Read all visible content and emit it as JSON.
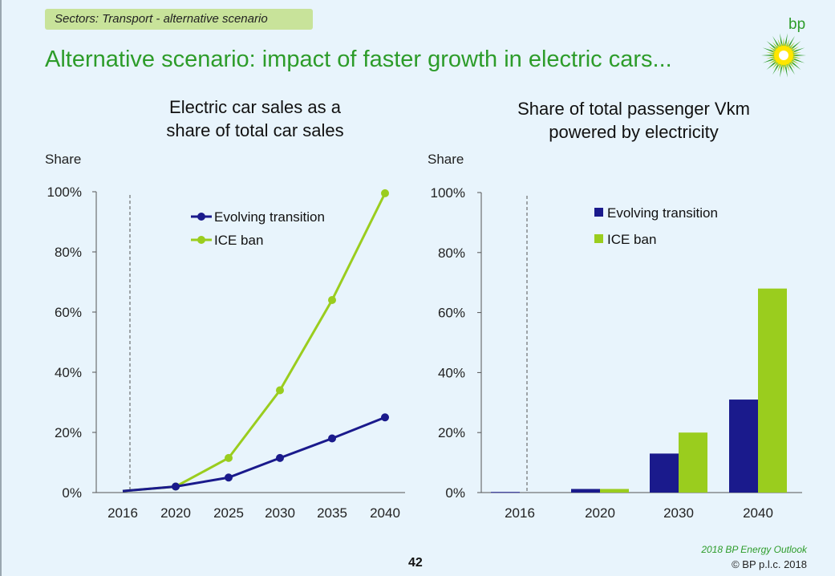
{
  "tag": "Sectors: Transport - alternative scenario",
  "headline": "Alternative scenario: impact of faster growth in electric cars...",
  "logo_text": "bp",
  "page_number": "42",
  "publication": "2018 BP Energy Outlook",
  "copyright": "© BP p.l.c. 2018",
  "colors": {
    "evolving": "#1a1a8c",
    "ice": "#9acd1e",
    "accent": "#2d9c2a"
  },
  "chart_data": [
    {
      "type": "line",
      "title_line1": "Electric car sales as a",
      "title_line2": "share of total car sales",
      "ylabel": "Share",
      "ylim": [
        0,
        100
      ],
      "yticks": [
        "0%",
        "20%",
        "40%",
        "60%",
        "80%",
        "100%"
      ],
      "categories": [
        "2016",
        "2020",
        "2025",
        "2030",
        "2035",
        "2040"
      ],
      "legend_position": "top-center",
      "series": [
        {
          "name": "Evolving transition",
          "values": [
            0.5,
            2,
            5,
            11.5,
            18,
            25
          ]
        },
        {
          "name": "ICE ban",
          "values": [
            0.5,
            2,
            11.5,
            34,
            64,
            99.5
          ]
        }
      ]
    },
    {
      "type": "bar",
      "title_line1": "Share of total passenger Vkm",
      "title_line2": "powered by electricity",
      "ylabel": "Share",
      "ylim": [
        0,
        100
      ],
      "yticks": [
        "0%",
        "20%",
        "40%",
        "60%",
        "80%",
        "100%"
      ],
      "categories": [
        "2016",
        "2020",
        "2030",
        "2040"
      ],
      "legend_position": "top-right",
      "series": [
        {
          "name": "Evolving transition",
          "values": [
            0.2,
            1.2,
            13,
            31
          ]
        },
        {
          "name": "ICE ban",
          "values": [
            0,
            1.2,
            20,
            68
          ]
        }
      ]
    }
  ]
}
